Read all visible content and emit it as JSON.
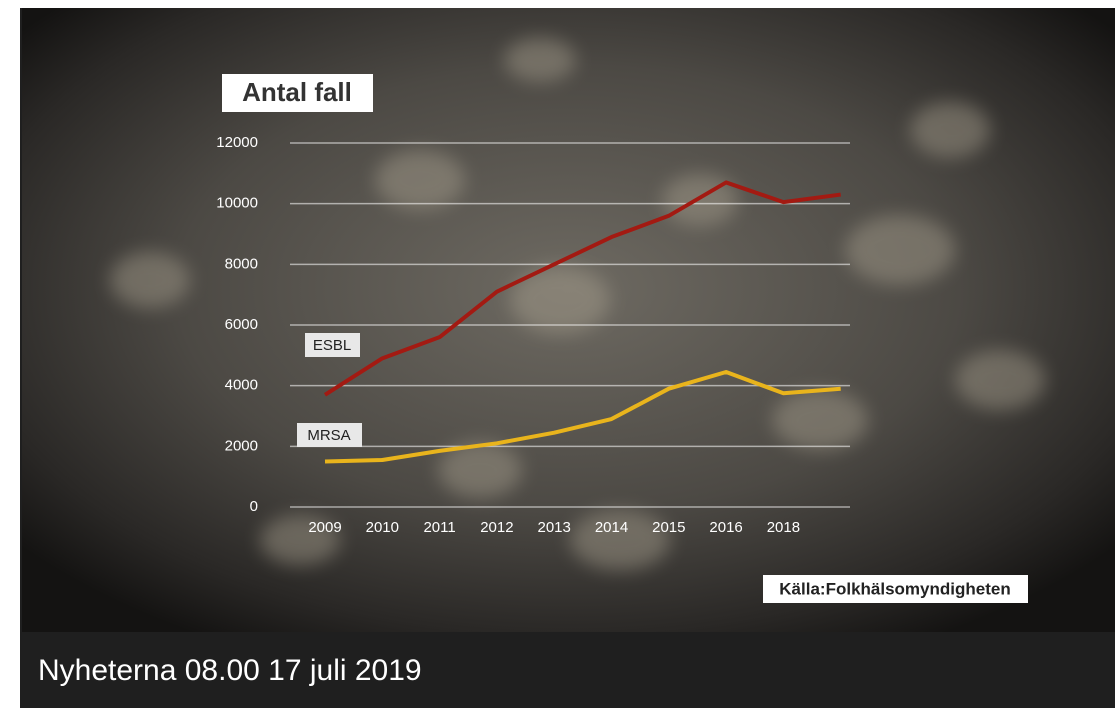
{
  "chart_data": {
    "type": "line",
    "title": "Antal fall",
    "categories": [
      "2009",
      "2010",
      "2011",
      "2012",
      "2013",
      "2014",
      "2015",
      "2016",
      "2018",
      null
    ],
    "series": [
      {
        "name": "ESBL",
        "color": "#a31a12",
        "values": [
          3700,
          4900,
          5600,
          7100,
          8000,
          8900,
          9600,
          10700,
          10050,
          10300
        ]
      },
      {
        "name": "MRSA",
        "color": "#e9b41c",
        "values": [
          1500,
          1550,
          1850,
          2100,
          2450,
          2900,
          3900,
          4450,
          3750,
          3900
        ]
      }
    ],
    "ylim": [
      0,
      12000
    ],
    "yticks": [
      0,
      2000,
      4000,
      6000,
      8000,
      10000,
      12000
    ],
    "grid": true,
    "source": "Källa:Folkhälsomyndigheten"
  },
  "caption": "Nyheterna 08.00 17 juli 2019"
}
